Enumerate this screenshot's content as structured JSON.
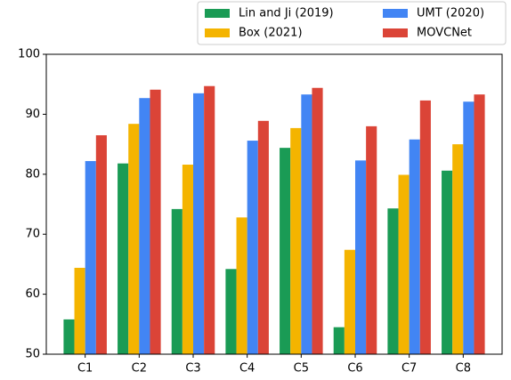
{
  "chart_data": {
    "type": "bar",
    "categories": [
      "C1",
      "C2",
      "C3",
      "C4",
      "C5",
      "C6",
      "C7",
      "C8"
    ],
    "series": [
      {
        "name": "Lin and Ji (2019)",
        "color": "#1a9b55",
        "values": [
          55.8,
          81.8,
          74.2,
          64.2,
          84.4,
          54.5,
          74.3,
          80.6
        ]
      },
      {
        "name": "Box (2021)",
        "color": "#f4b400",
        "values": [
          64.4,
          88.4,
          81.6,
          72.8,
          87.7,
          67.4,
          79.9,
          85.0
        ]
      },
      {
        "name": "UMT (2020)",
        "color": "#4285f4",
        "values": [
          82.2,
          92.7,
          93.5,
          85.6,
          93.3,
          82.3,
          85.8,
          92.1
        ]
      },
      {
        "name": "MOVCNet",
        "color": "#db4437",
        "values": [
          86.5,
          94.1,
          94.7,
          88.9,
          94.4,
          88.0,
          92.3,
          93.3
        ]
      }
    ],
    "ylim": [
      50,
      100
    ],
    "yticks": [
      50,
      60,
      70,
      80,
      90,
      100
    ],
    "legend": "upper right"
  }
}
